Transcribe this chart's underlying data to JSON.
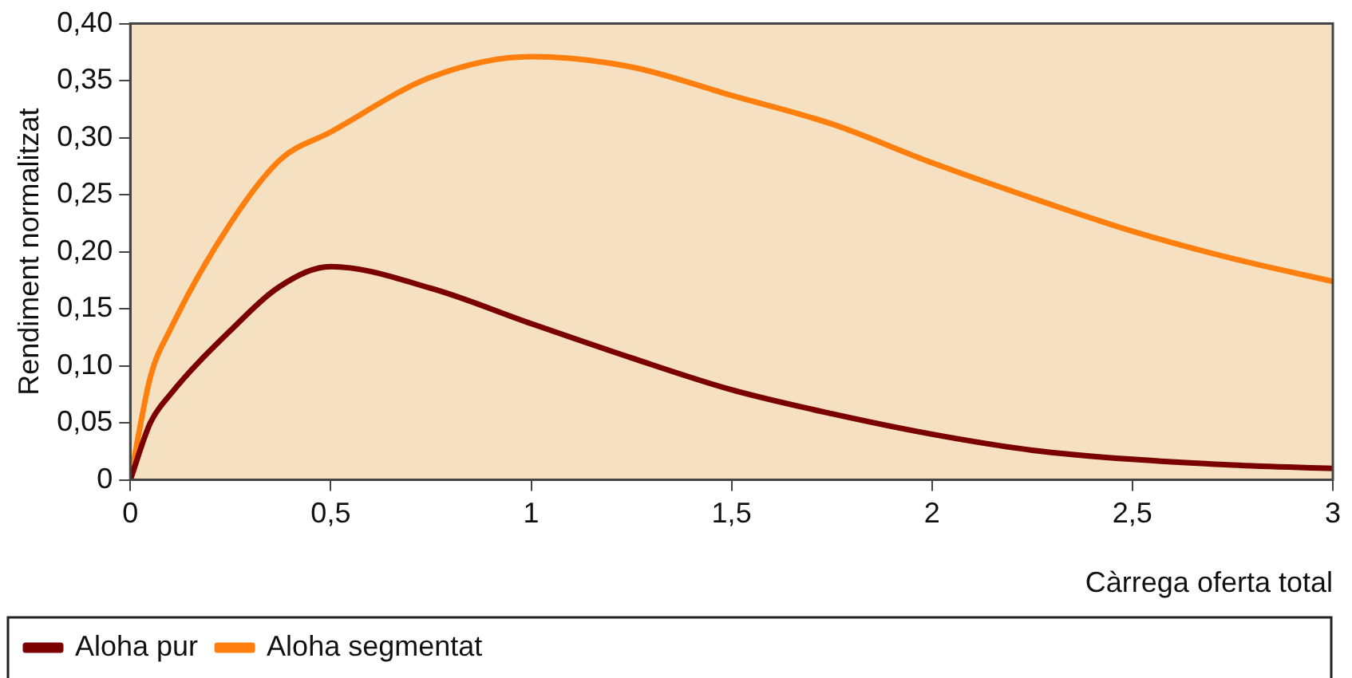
{
  "chart_data": {
    "type": "line",
    "xlabel": "Càrrega oferta total",
    "ylabel": "Rendiment normalitzat",
    "series": [
      {
        "name": "Aloha pur",
        "color": "#7b0000",
        "x": [
          0,
          0.05,
          0.1,
          0.25,
          0.375,
          0.5,
          0.75,
          1,
          1.25,
          1.5,
          1.75,
          2,
          2.25,
          2.5,
          2.75,
          3
        ],
        "values": [
          0,
          0.05,
          0.075,
          0.131,
          0.17,
          0.187,
          0.168,
          0.137,
          0.107,
          0.079,
          0.058,
          0.04,
          0.026,
          0.018,
          0.013,
          0.01
        ]
      },
      {
        "name": "Aloha segmentat",
        "color": "#ff7f0e",
        "x": [
          0,
          0.05,
          0.1,
          0.25,
          0.375,
          0.5,
          0.75,
          1,
          1.25,
          1.5,
          1.75,
          2,
          2.25,
          2.5,
          2.75,
          3
        ],
        "values": [
          0,
          0.09,
          0.132,
          0.225,
          0.281,
          0.305,
          0.353,
          0.371,
          0.362,
          0.337,
          0.312,
          0.278,
          0.247,
          0.218,
          0.194,
          0.174
        ]
      }
    ],
    "xlim": [
      0,
      3
    ],
    "xticks": [
      0,
      {
        "value": 0.5,
        "label": "0,5"
      },
      1,
      {
        "value": 1.5,
        "label": "1,5"
      },
      2,
      {
        "value": 2.5,
        "label": "2,5"
      },
      3
    ],
    "ylim": [
      0,
      0.4
    ],
    "yticks": [
      0,
      {
        "value": 0.05,
        "label": "0,05"
      },
      {
        "value": 0.1,
        "label": "0,10"
      },
      {
        "value": 0.15,
        "label": "0,15"
      },
      {
        "value": 0.2,
        "label": "0,20"
      },
      {
        "value": 0.25,
        "label": "0,25"
      },
      {
        "value": 0.3,
        "label": "0,30"
      },
      {
        "value": 0.35,
        "label": "0,35"
      },
      {
        "value": 0.4,
        "label": "0,40"
      }
    ],
    "grid": false,
    "legend": "bottom left",
    "marker": "none",
    "line_style": "solid"
  }
}
